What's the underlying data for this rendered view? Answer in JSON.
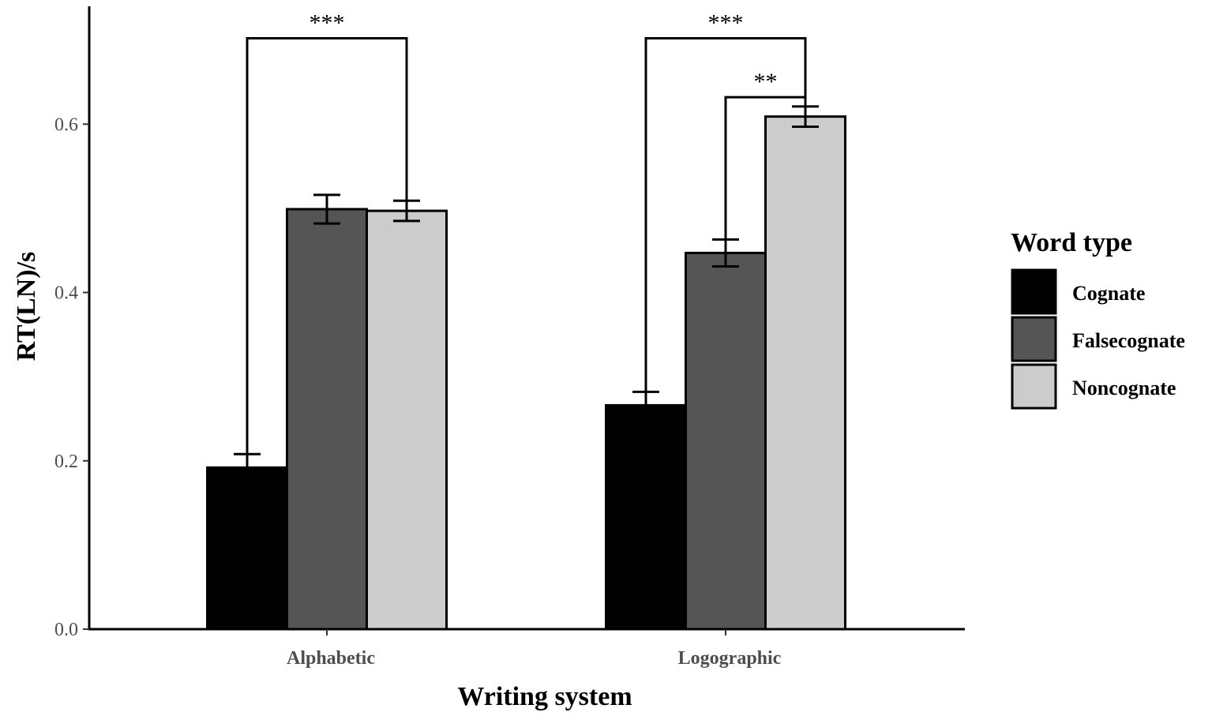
{
  "chart_data": {
    "type": "bar",
    "title": "",
    "xlabel": "Writing system",
    "ylabel": "RT(LN)/s",
    "ylim": [
      0,
      0.74
    ],
    "yticks": [
      0.0,
      0.2,
      0.4,
      0.6
    ],
    "ytick_labels": [
      "0.0",
      "0.2",
      "0.4",
      "0.6"
    ],
    "categories": [
      "Alphabetic",
      "Logographic"
    ],
    "grid": false,
    "legend": {
      "title": "Word type",
      "position": "right"
    },
    "series": [
      {
        "name": "Cognate",
        "color": "#000000",
        "values": [
          0.192,
          0.266
        ],
        "errors": [
          0.016,
          0.016
        ]
      },
      {
        "name": "Falsecognate",
        "color": "#555555",
        "values": [
          0.499,
          0.447
        ],
        "errors": [
          0.017,
          0.016
        ]
      },
      {
        "name": "Noncognate",
        "color": "#cccccc",
        "values": [
          0.497,
          0.609
        ],
        "errors": [
          0.012,
          0.012
        ]
      }
    ],
    "annotations": [
      {
        "label": "***",
        "category_index": 0,
        "from_series": 0,
        "to_series": 2,
        "y": 0.702
      },
      {
        "label": "***",
        "category_index": 1,
        "from_series": 0,
        "to_series": 2,
        "y": 0.702
      },
      {
        "label": "**",
        "category_index": 1,
        "from_series": 1,
        "to_series": 2,
        "y": 0.632
      }
    ]
  }
}
